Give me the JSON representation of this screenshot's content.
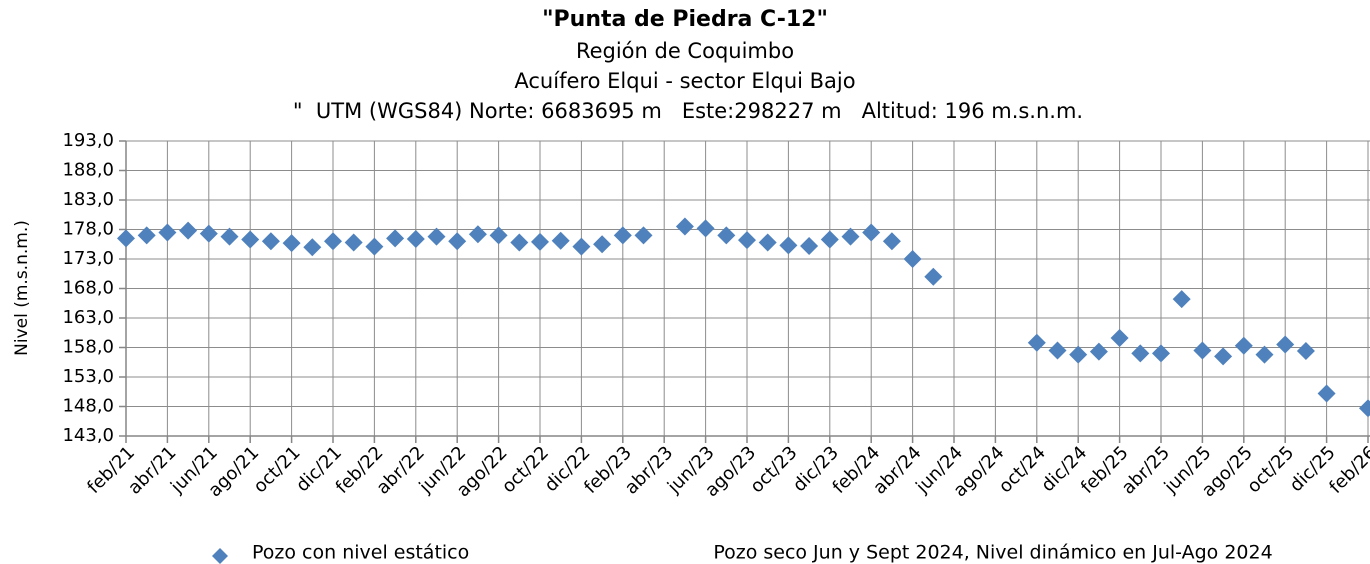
{
  "chart_data": {
    "type": "scatter",
    "title": "\"Punta de Piedra C-12\"",
    "subtitle": [
      "Región de Coquimbo",
      "Acuífero Elqui - sector Elqui Bajo",
      "\"  UTM (WGS84) Norte: 6683695 m   Este:298227 m   Altitud: 196 m.s.n.m."
    ],
    "y_label": "Nivel (m.s.n.m.)",
    "annotation": "Pozo seco Jun y Sept 2024, Nivel dinámico en Jul-Ago 2024",
    "categories": [
      "feb/21",
      null,
      "abr/21",
      null,
      "jun/21",
      null,
      "ago/21",
      null,
      "oct/21",
      null,
      "dic/21",
      null,
      "feb/22",
      null,
      "abr/22",
      null,
      "jun/22",
      null,
      "ago/22",
      null,
      "oct/22",
      null,
      "dic/22",
      null,
      "feb/23",
      null,
      "abr/23",
      null,
      "jun/23",
      null,
      "ago/23",
      null,
      "oct/23",
      null,
      "dic/23",
      null,
      "feb/24",
      null,
      "abr/24",
      null,
      "jun/24",
      null,
      "ago/24",
      null,
      "oct/24",
      null,
      "dic/24",
      null,
      "feb/25",
      null,
      "abr/25",
      null,
      "jun/25",
      null,
      "ago/25",
      null,
      "oct/25",
      null,
      "dic/25",
      null,
      "feb/26"
    ],
    "series": [
      {
        "name": "Pozo con nivel estático",
        "color": "#4f81bd",
        "values": [
          176.5,
          177.0,
          177.5,
          177.8,
          177.3,
          176.8,
          176.3,
          176.0,
          175.7,
          175.0,
          176.0,
          175.8,
          175.1,
          176.5,
          176.4,
          176.8,
          176.0,
          177.2,
          177.0,
          175.8,
          175.9,
          176.1,
          175.1,
          175.5,
          177.0,
          177.0,
          null,
          178.5,
          178.2,
          177.0,
          176.2,
          175.8,
          175.3,
          175.2,
          176.3,
          176.8,
          177.5,
          176.0,
          173.0,
          170.0,
          null,
          null,
          null,
          null,
          158.8,
          157.5,
          156.8,
          157.3,
          159.6,
          157.0,
          157.0,
          166.2,
          157.5,
          156.5,
          158.3,
          156.8,
          158.5,
          157.4,
          150.2,
          null,
          147.7
        ]
      }
    ],
    "ylim": [
      143,
      193
    ],
    "yticks": [
      {
        "value": 143,
        "label": "143,0"
      },
      {
        "value": 148,
        "label": "148,0"
      },
      {
        "value": 153,
        "label": "153,0"
      },
      {
        "value": 158,
        "label": "158,0"
      },
      {
        "value": 163,
        "label": "163,0"
      },
      {
        "value": 168,
        "label": "168,0"
      },
      {
        "value": 173,
        "label": "173,0"
      },
      {
        "value": 178,
        "label": "178,0"
      },
      {
        "value": 183,
        "label": "183,0"
      },
      {
        "value": 188,
        "label": "188,0"
      },
      {
        "value": 193,
        "label": "193,0"
      }
    ],
    "grid": true
  }
}
